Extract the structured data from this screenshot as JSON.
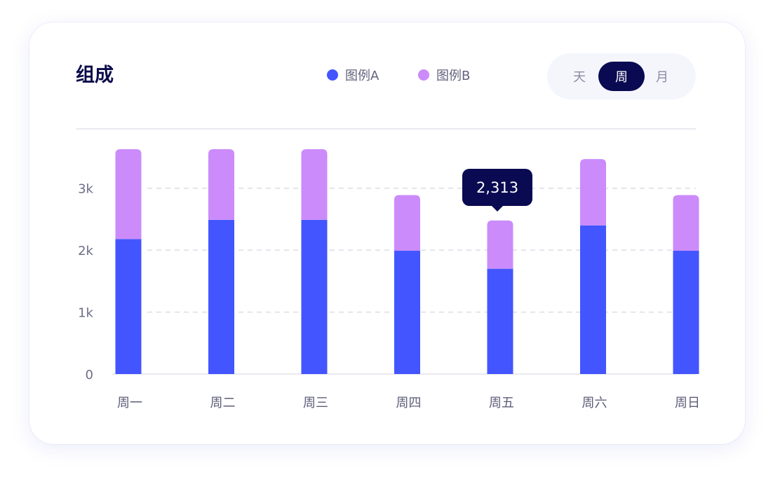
{
  "card": {
    "title": "组成"
  },
  "legend": [
    {
      "label": "图例A",
      "color": "#4355ff"
    },
    {
      "label": "图例B",
      "color": "#cb8bfb"
    }
  ],
  "period_toggle": {
    "options": [
      "天",
      "周",
      "月"
    ],
    "selected": "周"
  },
  "tooltip": {
    "value": "2,313"
  },
  "chart_data": {
    "type": "bar",
    "stacked": true,
    "categories": [
      "周一",
      "周二",
      "周三",
      "周四",
      "周五",
      "周六",
      "周日"
    ],
    "series": [
      {
        "name": "图例A",
        "color": "#4355ff",
        "values": [
          2180,
          2490,
          2490,
          1990,
          1700,
          2400,
          1990
        ]
      },
      {
        "name": "图例B",
        "color": "#cb8bfb",
        "values": [
          1450,
          1140,
          1140,
          900,
          780,
          1070,
          900
        ]
      }
    ],
    "y_ticks": [
      "0",
      "1k",
      "2k",
      "3k"
    ],
    "y_tick_values": [
      0,
      1000,
      2000,
      3000
    ],
    "ylim": [
      0,
      3630
    ],
    "grid": true,
    "gridlines_dashed": true,
    "legend_position": "top",
    "highlighted_category": "周五"
  }
}
